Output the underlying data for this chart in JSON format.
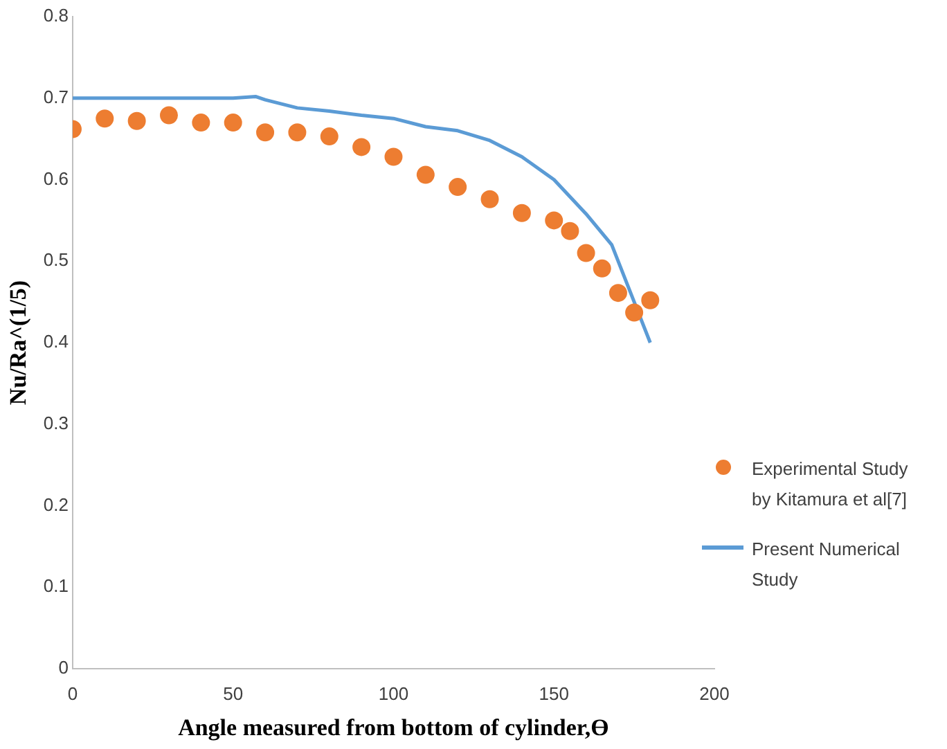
{
  "chart_data": {
    "type": "scatter",
    "xlabel": "Angle measured from bottom of cylinder,ϴ",
    "ylabel": "Nu/Ra^(1/5)",
    "xlim": [
      0,
      200
    ],
    "xticks": [
      0,
      50,
      100,
      150,
      200
    ],
    "ylim": [
      0,
      0.8
    ],
    "yticks": [
      0,
      0.1,
      0.2,
      0.3,
      0.4,
      0.5,
      0.6,
      0.7,
      0.8
    ],
    "grid": false,
    "legend": "right",
    "series": [
      {
        "name": "Experimental Study by Kitamura et al[7]",
        "marker": "circle",
        "color": "#ed7d31",
        "x": [
          0,
          10,
          20,
          30,
          40,
          50,
          60,
          70,
          80,
          90,
          100,
          110,
          120,
          130,
          140,
          150,
          155,
          160,
          165,
          170,
          175,
          180
        ],
        "values": [
          0.662,
          0.675,
          0.672,
          0.679,
          0.67,
          0.67,
          0.658,
          0.658,
          0.653,
          0.64,
          0.628,
          0.606,
          0.591,
          0.576,
          0.559,
          0.55,
          0.537,
          0.51,
          0.491,
          0.461,
          0.437,
          0.452
        ]
      },
      {
        "name": "Present Numerical Study",
        "type": "line",
        "marker": "none",
        "line_style": "solid",
        "color": "#5b9bd5",
        "x": [
          0,
          20,
          40,
          50,
          57,
          60,
          70,
          80,
          90,
          100,
          110,
          120,
          130,
          140,
          150,
          160,
          168,
          174,
          180
        ],
        "values": [
          0.7,
          0.7,
          0.7,
          0.7,
          0.702,
          0.698,
          0.688,
          0.684,
          0.679,
          0.675,
          0.665,
          0.66,
          0.648,
          0.628,
          0.6,
          0.558,
          0.52,
          0.46,
          0.4
        ]
      }
    ]
  }
}
